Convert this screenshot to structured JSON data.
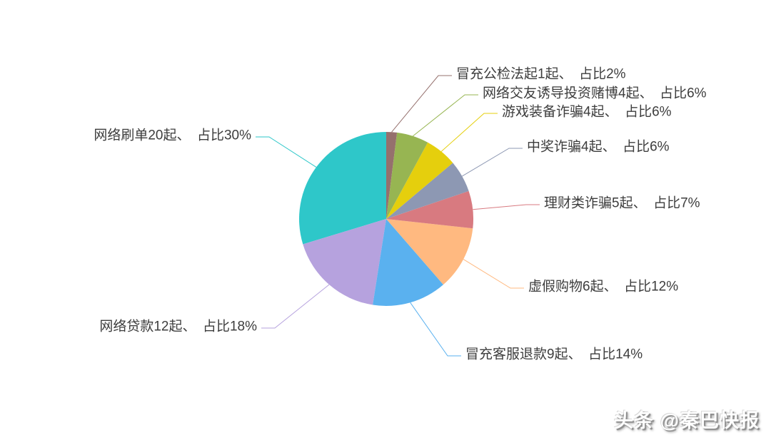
{
  "page": {
    "background_color": "#ffffff",
    "label_text_color": "#3d3d3d"
  },
  "watermark": {
    "text": "头条 @秦巴快报"
  },
  "chart_data": {
    "type": "pie",
    "title": "",
    "legend_position": "none",
    "grid": false,
    "start_angle": "top",
    "direction": "counterclockwise",
    "center": [
      541,
      307
    ],
    "radius": 122,
    "label_font_size": 19,
    "label_color": "#3d3d3d",
    "slices": [
      {
        "name": "网络刷单",
        "count": 20,
        "percent": 30,
        "label": "网络刷单20起、　占比30%",
        "color": "#2ec7c9",
        "side": "left",
        "anchor": [
          352,
          190
        ]
      },
      {
        "name": "网络贷款",
        "count": 12,
        "percent": 18,
        "label": "网络贷款12起、　占比18%",
        "color": "#b6a2de",
        "side": "left",
        "anchor": [
          360,
          458
        ]
      },
      {
        "name": "冒充客服退款",
        "count": 9,
        "percent": 14,
        "label": "冒充客服退款9起、　占比14%",
        "color": "#5ab1ef",
        "side": "right",
        "anchor": [
          652,
          497
        ]
      },
      {
        "name": "虚假购物",
        "count": 6,
        "percent": 12,
        "label": "虚假购物6起、　占比12%",
        "color": "#ffb980",
        "side": "right",
        "anchor": [
          740,
          402
        ]
      },
      {
        "name": "理财类诈骗",
        "count": 5,
        "percent": 7,
        "label": "理财类诈骗5起、　占比7%",
        "color": "#d87a80",
        "side": "right",
        "anchor": [
          762,
          285
        ]
      },
      {
        "name": "中奖诈骗",
        "count": 4,
        "percent": 6,
        "label": "中奖诈骗4起、　占比6%",
        "color": "#8d98b3",
        "side": "right",
        "anchor": [
          738,
          206
        ]
      },
      {
        "name": "游戏装备诈骗",
        "count": 4,
        "percent": 6,
        "label": "游戏装备诈骗4起、　占比6%",
        "color": "#e5cf0d",
        "side": "right",
        "anchor": [
          703,
          157
        ]
      },
      {
        "name": "网络交友诱导投资赌博",
        "count": 4,
        "percent": 6,
        "label": "网络交友诱导投资赌博4起、　占比6%",
        "color": "#97b552",
        "side": "right",
        "anchor": [
          676,
          131
        ]
      },
      {
        "name": "冒充公检法",
        "count": 1,
        "percent": 2,
        "label": "冒充公检法起1起、　占比2%",
        "color": "#95706d",
        "side": "right",
        "anchor": [
          639,
          104
        ]
      }
    ]
  }
}
